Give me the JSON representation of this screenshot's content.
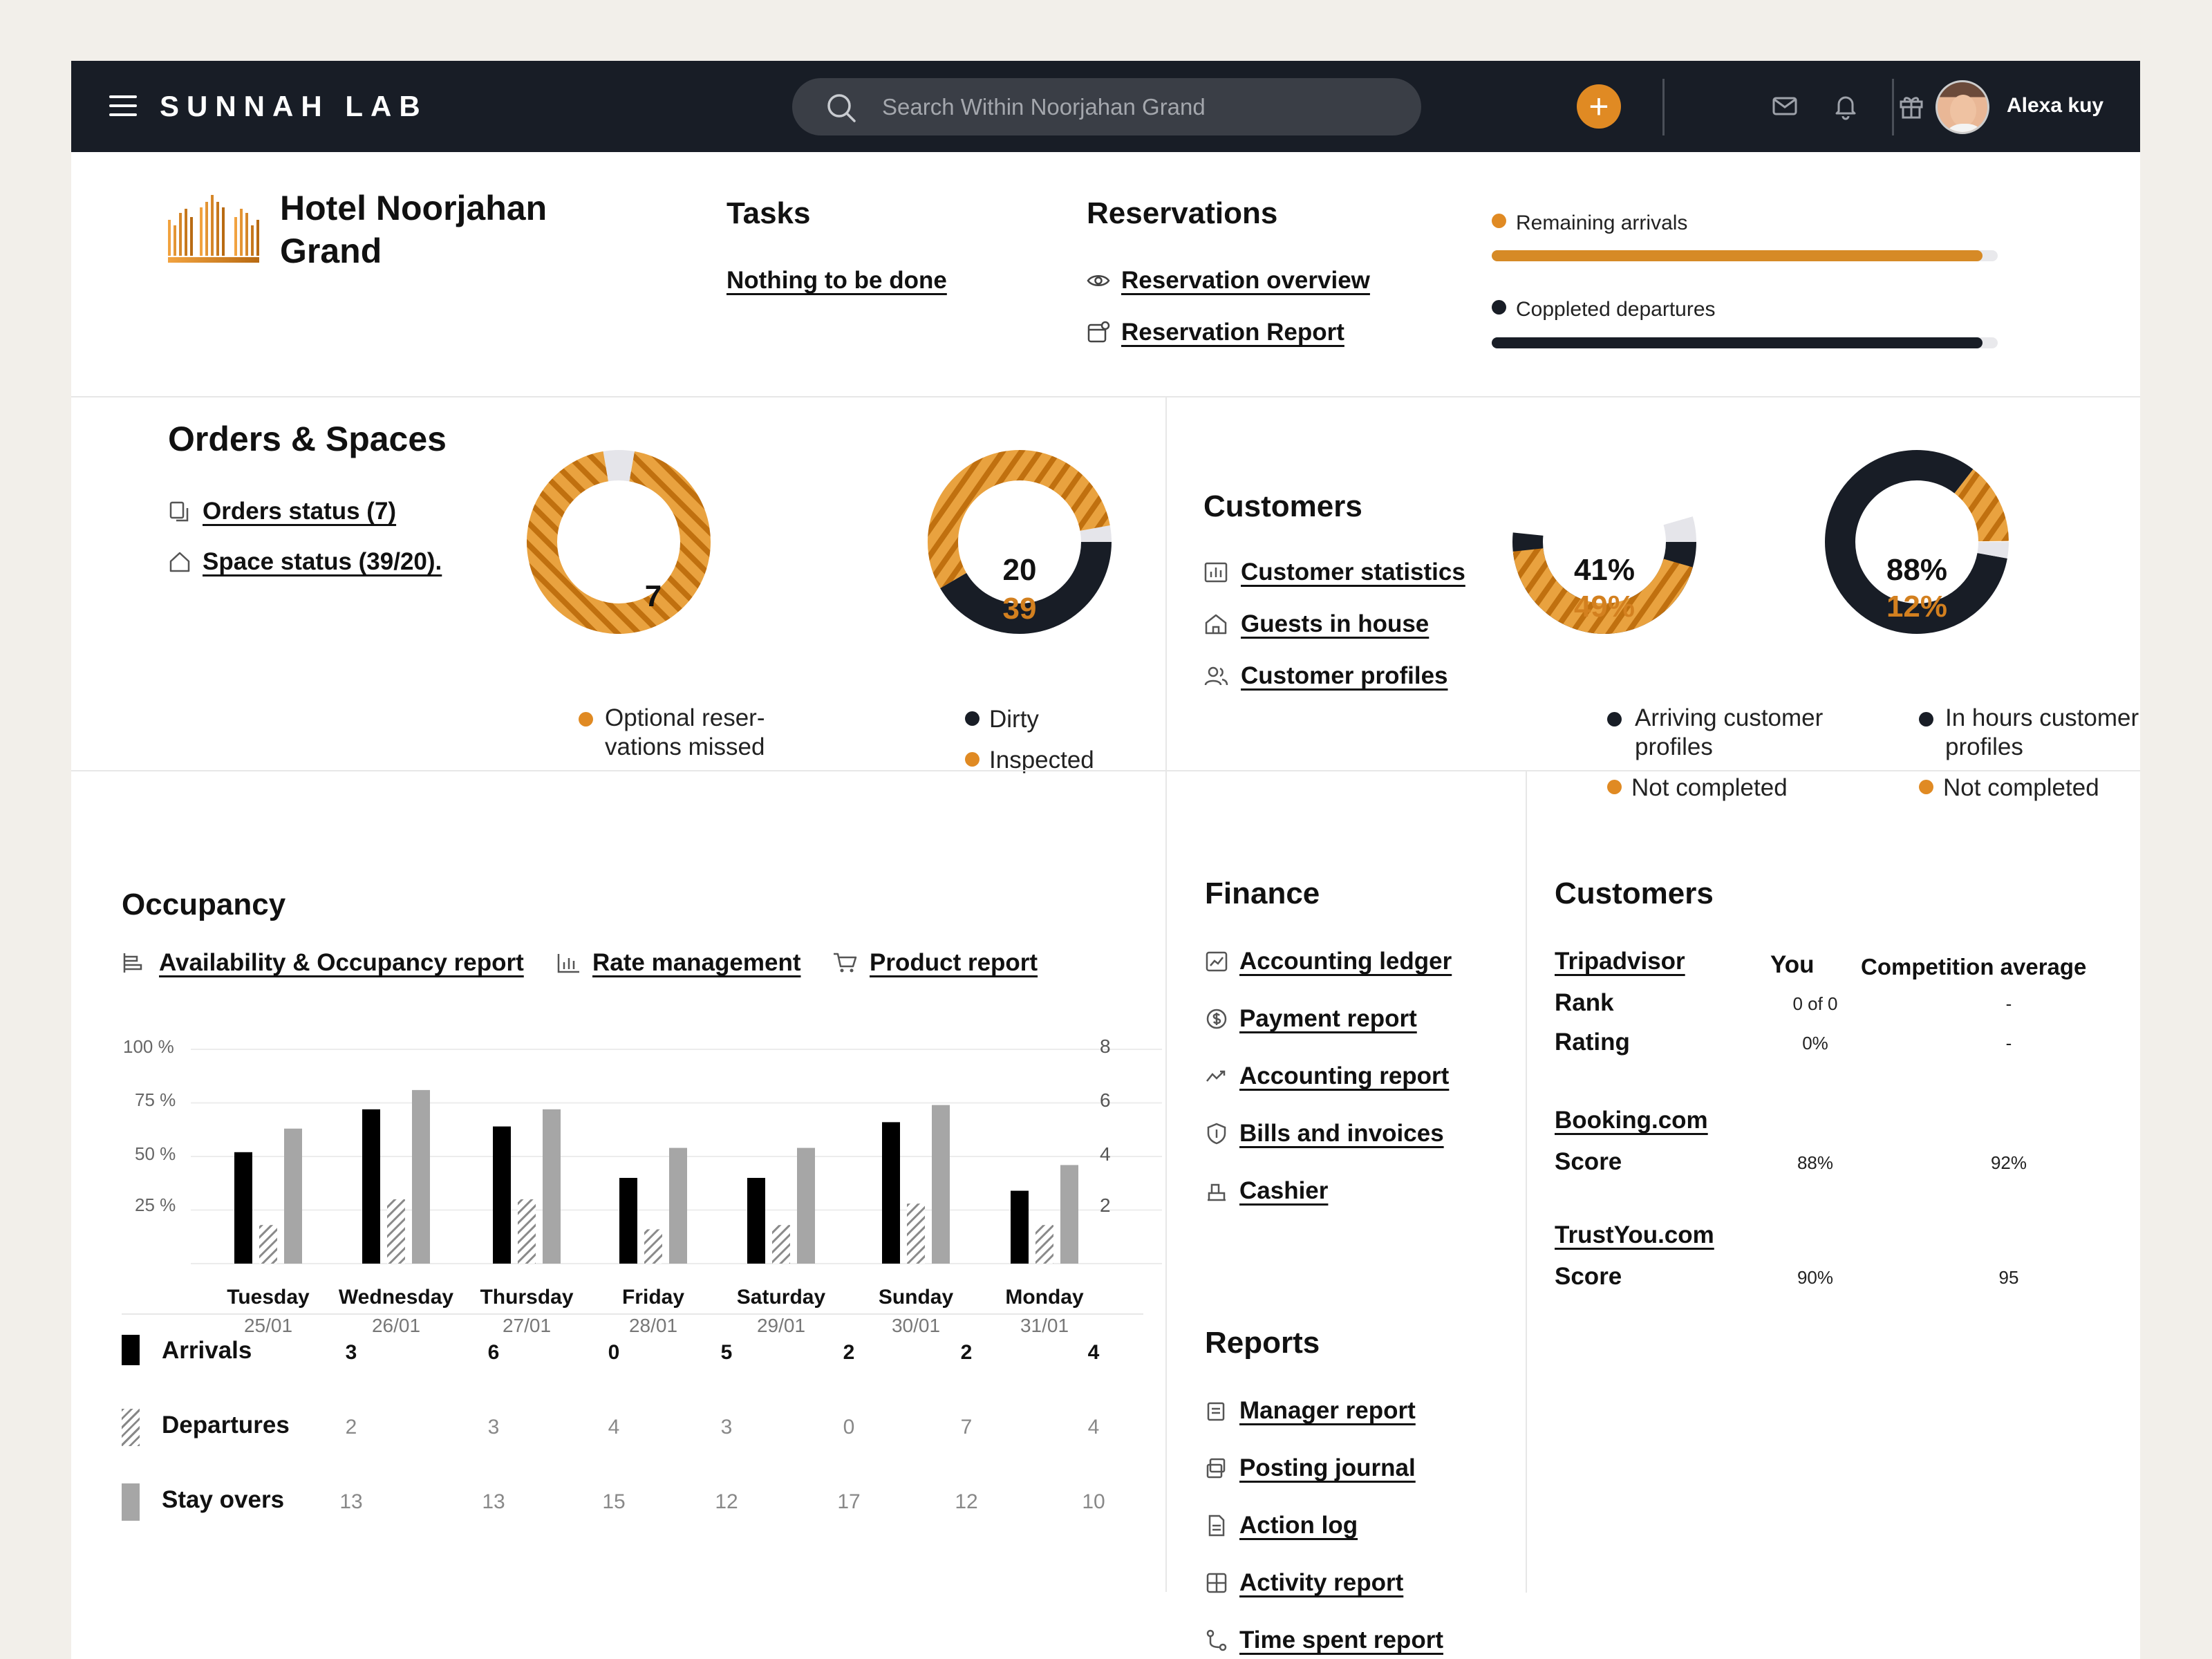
{
  "topbar": {
    "brand": "SUNNAH LAB",
    "search_placeholder": "Search Within Noorjahan Grand",
    "add_label": "+",
    "user_name": "Alexa kuy"
  },
  "hotel": {
    "name_line1": "Hotel Noorjahan",
    "name_line2": "Grand"
  },
  "tasks": {
    "title": "Tasks",
    "link": "Nothing to be done"
  },
  "reservations": {
    "title": "Reservations",
    "overview": "Reservation overview",
    "report": "Reservation Report"
  },
  "progress": [
    {
      "label": "Remaining arrivals",
      "value": 0.97,
      "color": "#d68a26"
    },
    {
      "label": "Coppleted departures",
      "value": 0.97,
      "color": "#181d26"
    }
  ],
  "orders": {
    "title": "Orders & Spaces",
    "orders_status": "Orders status (7)",
    "space_status": "Space status (39/20).",
    "donut1_value": "7",
    "donut1_legend": "Optional reser-\nvations missed",
    "donut2_top": "20",
    "donut2_bottom": "39",
    "donut2_legend1": "Dirty",
    "donut2_legend2": "Inspected"
  },
  "customers_top": {
    "title": "Customers",
    "statistics": "Customer statistics",
    "guests": "Guests in house",
    "profiles": "Customer profiles",
    "donut3_top": "41%",
    "donut3_bottom": "49%",
    "donut3_legend1": "Arriving customer\nprofiles",
    "donut3_legend2": "Not completed",
    "donut4_top": "88%",
    "donut4_bottom": "12%",
    "donut4_legend1": "In hours customer\nprofiles",
    "donut4_legend2": "Not completed"
  },
  "occupancy": {
    "title": "Occupancy",
    "links": [
      "Availability & Occupancy report",
      "Rate management",
      "Product report"
    ],
    "left_ticks": [
      "100 %",
      "75 %",
      "50 %",
      "25 %"
    ],
    "right_ticks": [
      "8",
      "6",
      "4",
      "2"
    ],
    "days": [
      {
        "name": "Tuesday",
        "date": "25/01"
      },
      {
        "name": "Wednesday",
        "date": "26/01"
      },
      {
        "name": "Thursday",
        "date": "27/01"
      },
      {
        "name": "Friday",
        "date": "28/01"
      },
      {
        "name": "Saturday",
        "date": "29/01"
      },
      {
        "name": "Sunday",
        "date": "30/01"
      },
      {
        "name": "Monday",
        "date": "31/01"
      }
    ],
    "rows": [
      {
        "label": "Arrivals",
        "values": [
          "3",
          "6",
          "0",
          "5",
          "2",
          "2",
          "4"
        ]
      },
      {
        "label": "Departures",
        "values": [
          "2",
          "3",
          "4",
          "3",
          "0",
          "7",
          "4"
        ]
      },
      {
        "label": "Stay overs",
        "values": [
          "13",
          "13",
          "15",
          "12",
          "17",
          "12",
          "10"
        ]
      }
    ]
  },
  "chart_data": {
    "type": "bar",
    "categories": [
      "Tuesday 25/01",
      "Wednesday 26/01",
      "Thursday 27/01",
      "Friday 28/01",
      "Saturday 29/01",
      "Sunday 30/01",
      "Monday 31/01"
    ],
    "series": [
      {
        "name": "Arrivals",
        "values": [
          52,
          72,
          64,
          40,
          40,
          66,
          34
        ]
      },
      {
        "name": "Departures",
        "values": [
          18,
          30,
          30,
          16,
          18,
          28,
          18
        ]
      },
      {
        "name": "Stay overs",
        "values": [
          63,
          81,
          72,
          54,
          54,
          74,
          46
        ]
      }
    ],
    "ylabel": "",
    "ylim": [
      0,
      100
    ],
    "y_ticks": [
      "100 %",
      "75 %",
      "50 %",
      "25 %"
    ],
    "y2_ticks": [
      "8",
      "6",
      "4",
      "2"
    ],
    "grid": true
  },
  "finance": {
    "title": "Finance",
    "links": [
      "Accounting  ledger",
      "Payment report",
      "Accounting report",
      "Bills and invoices",
      "Cashier"
    ]
  },
  "reports": {
    "title": "Reports",
    "links": [
      "Manager report",
      "Posting journal",
      "Action log",
      "Activity report",
      "Time spent report"
    ]
  },
  "customers_cmp": {
    "title": "Customers",
    "col_you": "You",
    "col_comp": "Competition average",
    "groups": [
      {
        "source": "Tripadvisor",
        "rows": [
          {
            "label": "Rank",
            "you": "0 of 0",
            "comp": "-"
          },
          {
            "label": "Rating",
            "you": "0%",
            "comp": "-"
          }
        ]
      },
      {
        "source": "Booking.com",
        "rows": [
          {
            "label": "Score",
            "you": "88%",
            "comp": "92%"
          }
        ]
      },
      {
        "source": "TrustYou.com",
        "rows": [
          {
            "label": "Score",
            "you": "90%",
            "comp": "95"
          }
        ]
      }
    ]
  }
}
